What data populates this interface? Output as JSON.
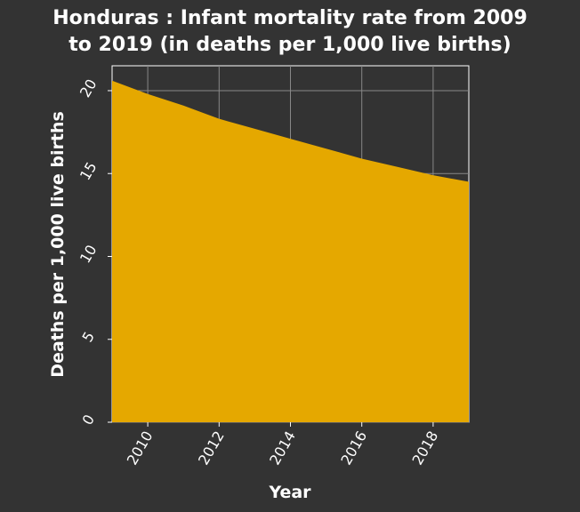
{
  "chart_data": {
    "type": "area",
    "title": [
      "Honduras : Infant mortality rate from 2009",
      "to 2019 (in deaths per 1,000 live births)"
    ],
    "xlabel": "Year",
    "ylabel": "Deaths per 1,000 live births",
    "x": [
      2009,
      2010,
      2011,
      2012,
      2013,
      2014,
      2015,
      2016,
      2017,
      2018,
      2019
    ],
    "y": [
      20.6,
      19.8,
      19.1,
      18.3,
      17.7,
      17.1,
      16.5,
      15.9,
      15.4,
      14.9,
      14.5
    ],
    "xlim": [
      2009,
      2019
    ],
    "ylim": [
      0,
      21.5
    ],
    "xticks": [
      "2010",
      "2012",
      "2014",
      "2016",
      "2018"
    ],
    "yticks": [
      "0",
      "5",
      "10",
      "15",
      "20"
    ],
    "grid": true,
    "colors": {
      "background": "#333333",
      "fill": "#e5a800",
      "grid": "#888888",
      "text": "#ffffff"
    }
  }
}
